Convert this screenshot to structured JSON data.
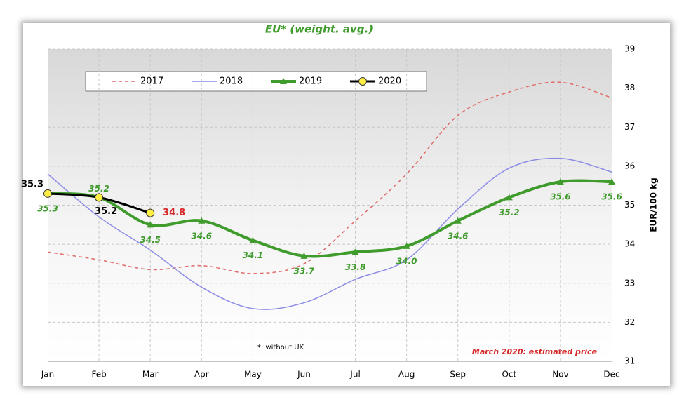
{
  "chart_data": {
    "type": "line",
    "title": "EU* (weight. avg.)",
    "categories": [
      "Jan",
      "Feb",
      "Mar",
      "Apr",
      "May",
      "Jun",
      "Jul",
      "Aug",
      "Sep",
      "Oct",
      "Nov",
      "Dec"
    ],
    "series": [
      {
        "name": "2017",
        "color": "#e06a6a",
        "dashed": true,
        "values": [
          33.8,
          33.6,
          33.35,
          33.45,
          33.25,
          33.5,
          34.6,
          35.8,
          37.3,
          37.9,
          38.15,
          37.75
        ]
      },
      {
        "name": "2018",
        "color": "#8c8ce6",
        "values": [
          35.8,
          34.7,
          33.85,
          32.9,
          32.35,
          32.5,
          33.1,
          33.6,
          34.9,
          35.95,
          36.2,
          35.85
        ]
      },
      {
        "name": "2019",
        "color": "#3f9b2c",
        "marker": "triangle",
        "values": [
          35.3,
          35.2,
          34.5,
          34.6,
          34.1,
          33.7,
          33.8,
          33.95,
          34.6,
          35.2,
          35.6,
          35.6
        ],
        "value_labels": [
          "35.3",
          "35.2",
          "34.5",
          "34.6",
          "34.1",
          "33.7",
          "33.8",
          "34.0",
          "34.6",
          "35.2",
          "35.6",
          "35.6"
        ]
      },
      {
        "name": "2020",
        "color": "#000000",
        "marker": "circle",
        "values": [
          35.3,
          35.2,
          34.8,
          null,
          null,
          null,
          null,
          null,
          null,
          null,
          null,
          null
        ],
        "value_labels": [
          "35.3",
          "35.2",
          "34.8",
          null,
          null,
          null,
          null,
          null,
          null,
          null,
          null,
          null
        ],
        "label_colors": [
          "#000000",
          "#000000",
          "#d62728",
          null,
          null,
          null,
          null,
          null,
          null,
          null,
          null,
          null
        ]
      }
    ],
    "ylim": [
      31,
      39
    ],
    "yticks": [
      31,
      32,
      33,
      34,
      35,
      36,
      37,
      38,
      39
    ],
    "y_axis_side": "right",
    "y_label": "EUR/100 kg",
    "grid": true,
    "annotations": [
      "*: without UK",
      "March 2020: estimated price"
    ]
  }
}
